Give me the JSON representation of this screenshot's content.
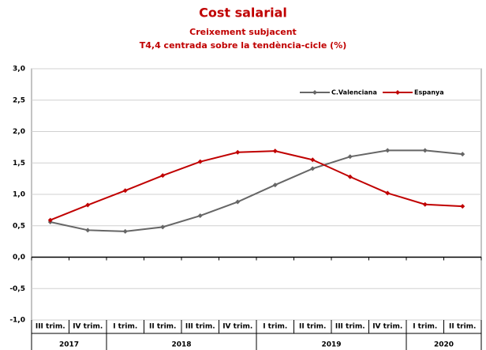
{
  "chart_data": {
    "type": "line",
    "title": "Cost salarial",
    "subtitle": [
      "Creixement subjacent",
      "T4,4 centrada sobre la tendència-cicle (%)"
    ],
    "categories": [
      "III trim.",
      "IV trim.",
      "I trim.",
      "II trim.",
      "III trim.",
      "IV trim.",
      "I trim.",
      "II trim.",
      "III trim.",
      "IV trim.",
      "I trim.",
      "II trim."
    ],
    "years": [
      "2017",
      "2017",
      "2018",
      "2018",
      "2018",
      "2018",
      "2019",
      "2019",
      "2019",
      "2019",
      "2020",
      "2020"
    ],
    "series": [
      {
        "name": "C.Valenciana",
        "color": "#666666",
        "values": [
          0.56,
          0.43,
          0.41,
          0.48,
          0.66,
          0.88,
          1.15,
          1.41,
          1.6,
          1.7,
          1.7,
          1.64
        ]
      },
      {
        "name": "Espanya",
        "color": "#c00000",
        "values": [
          0.59,
          0.83,
          1.06,
          1.3,
          1.52,
          1.67,
          1.69,
          1.55,
          1.28,
          1.02,
          0.84,
          0.81
        ]
      }
    ],
    "ylim": [
      -1,
      3
    ],
    "yticks": [
      {
        "value": -1,
        "label": "-1,0"
      },
      {
        "value": -0.5,
        "label": "-0,5"
      },
      {
        "value": 0,
        "label": "0,0"
      },
      {
        "value": 0.5,
        "label": "0,5"
      },
      {
        "value": 1,
        "label": "1,0"
      },
      {
        "value": 1.5,
        "label": "1,5"
      },
      {
        "value": 2,
        "label": "2,0"
      },
      {
        "value": 2.5,
        "label": "2,5"
      },
      {
        "value": 3,
        "label": "3,0"
      }
    ],
    "grid": true,
    "legend": "upper right"
  }
}
